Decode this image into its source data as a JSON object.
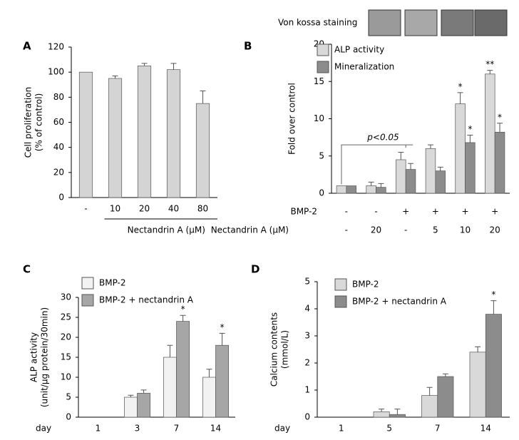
{
  "chart_data": [
    {
      "type": "bar",
      "panel_label": "A",
      "ylabel": [
        "Cell proliferation",
        "(% of control)"
      ],
      "xlabel": "Nectandrin A (μM)",
      "categories": [
        "-",
        "10",
        "20",
        "40",
        "80"
      ],
      "series": [
        {
          "color": "#d4d4d4",
          "values": [
            100,
            95,
            105,
            102,
            75
          ],
          "errors": [
            0,
            2,
            2,
            5,
            10
          ]
        }
      ],
      "ylim": [
        0,
        120
      ],
      "yticks": [
        0,
        20,
        40,
        60,
        80,
        100,
        120
      ]
    },
    {
      "type": "bar",
      "panel_label": "B",
      "ylabel": [
        "Fold  over control"
      ],
      "image_caption": "Von kossa staining",
      "bracket_label": "p<0.05",
      "rows": [
        {
          "label": "BMP-2",
          "values": [
            "-",
            "-",
            "+",
            "+",
            "+",
            "+"
          ]
        },
        {
          "label": "Nectandrin A (μM)",
          "values": [
            "-",
            "20",
            "-",
            "5",
            "10",
            "20"
          ]
        }
      ],
      "series": [
        {
          "name": "ALP activity",
          "color": "#d9d9d9",
          "values": [
            1,
            1,
            4.5,
            6,
            12,
            16
          ],
          "errors": [
            0,
            0.5,
            1,
            0.5,
            1.5,
            0.5
          ],
          "labels": [
            null,
            null,
            null,
            null,
            "*",
            "**"
          ]
        },
        {
          "name": "Mineralization",
          "color": "#8c8c8c",
          "values": [
            1,
            0.8,
            3.2,
            3,
            6.8,
            8.2
          ],
          "errors": [
            0,
            0.5,
            0.8,
            0.5,
            1,
            1.2
          ],
          "labels": [
            null,
            null,
            null,
            null,
            "*",
            "*"
          ]
        }
      ],
      "ylim": [
        0,
        20
      ],
      "yticks": [
        0,
        5,
        10,
        15,
        20
      ]
    },
    {
      "type": "bar",
      "panel_label": "C",
      "ylabel": [
        "ALP activity",
        "(unit/μg protein/30min)"
      ],
      "xlabel": "day",
      "categories": [
        "1",
        "3",
        "7",
        "14"
      ],
      "series": [
        {
          "name": "BMP-2",
          "color": "#f2f2f2",
          "values": [
            0,
            5,
            15,
            10
          ],
          "errors": [
            0,
            0.5,
            3,
            2
          ],
          "labels": [
            null,
            null,
            null,
            null
          ]
        },
        {
          "name": "BMP-2 + nectandrin A",
          "color": "#a6a6a6",
          "values": [
            0,
            6,
            24,
            18
          ],
          "errors": [
            0,
            0.8,
            1.5,
            3
          ],
          "labels": [
            null,
            null,
            "*",
            "*"
          ]
        }
      ],
      "ylim": [
        0,
        30
      ],
      "yticks": [
        0,
        5,
        10,
        15,
        20,
        25,
        30
      ]
    },
    {
      "type": "bar",
      "panel_label": "D",
      "ylabel": [
        "Calcium contents",
        "(mmol/L)"
      ],
      "xlabel": "day",
      "categories": [
        "1",
        "5",
        "7",
        "14"
      ],
      "series": [
        {
          "name": "BMP-2",
          "color": "#d9d9d9",
          "values": [
            0,
            0.2,
            0.8,
            2.4
          ],
          "errors": [
            0,
            0.1,
            0.3,
            0.2
          ],
          "labels": [
            null,
            null,
            null,
            null
          ]
        },
        {
          "name": "BMP-2 + nectandrin A",
          "color": "#8c8c8c",
          "values": [
            0,
            0.1,
            1.5,
            3.8
          ],
          "errors": [
            0,
            0.2,
            0.1,
            0.5
          ],
          "labels": [
            null,
            null,
            null,
            "*"
          ]
        }
      ],
      "ylim": [
        0,
        5
      ],
      "yticks": [
        0,
        1,
        2,
        3,
        4,
        5
      ]
    }
  ]
}
